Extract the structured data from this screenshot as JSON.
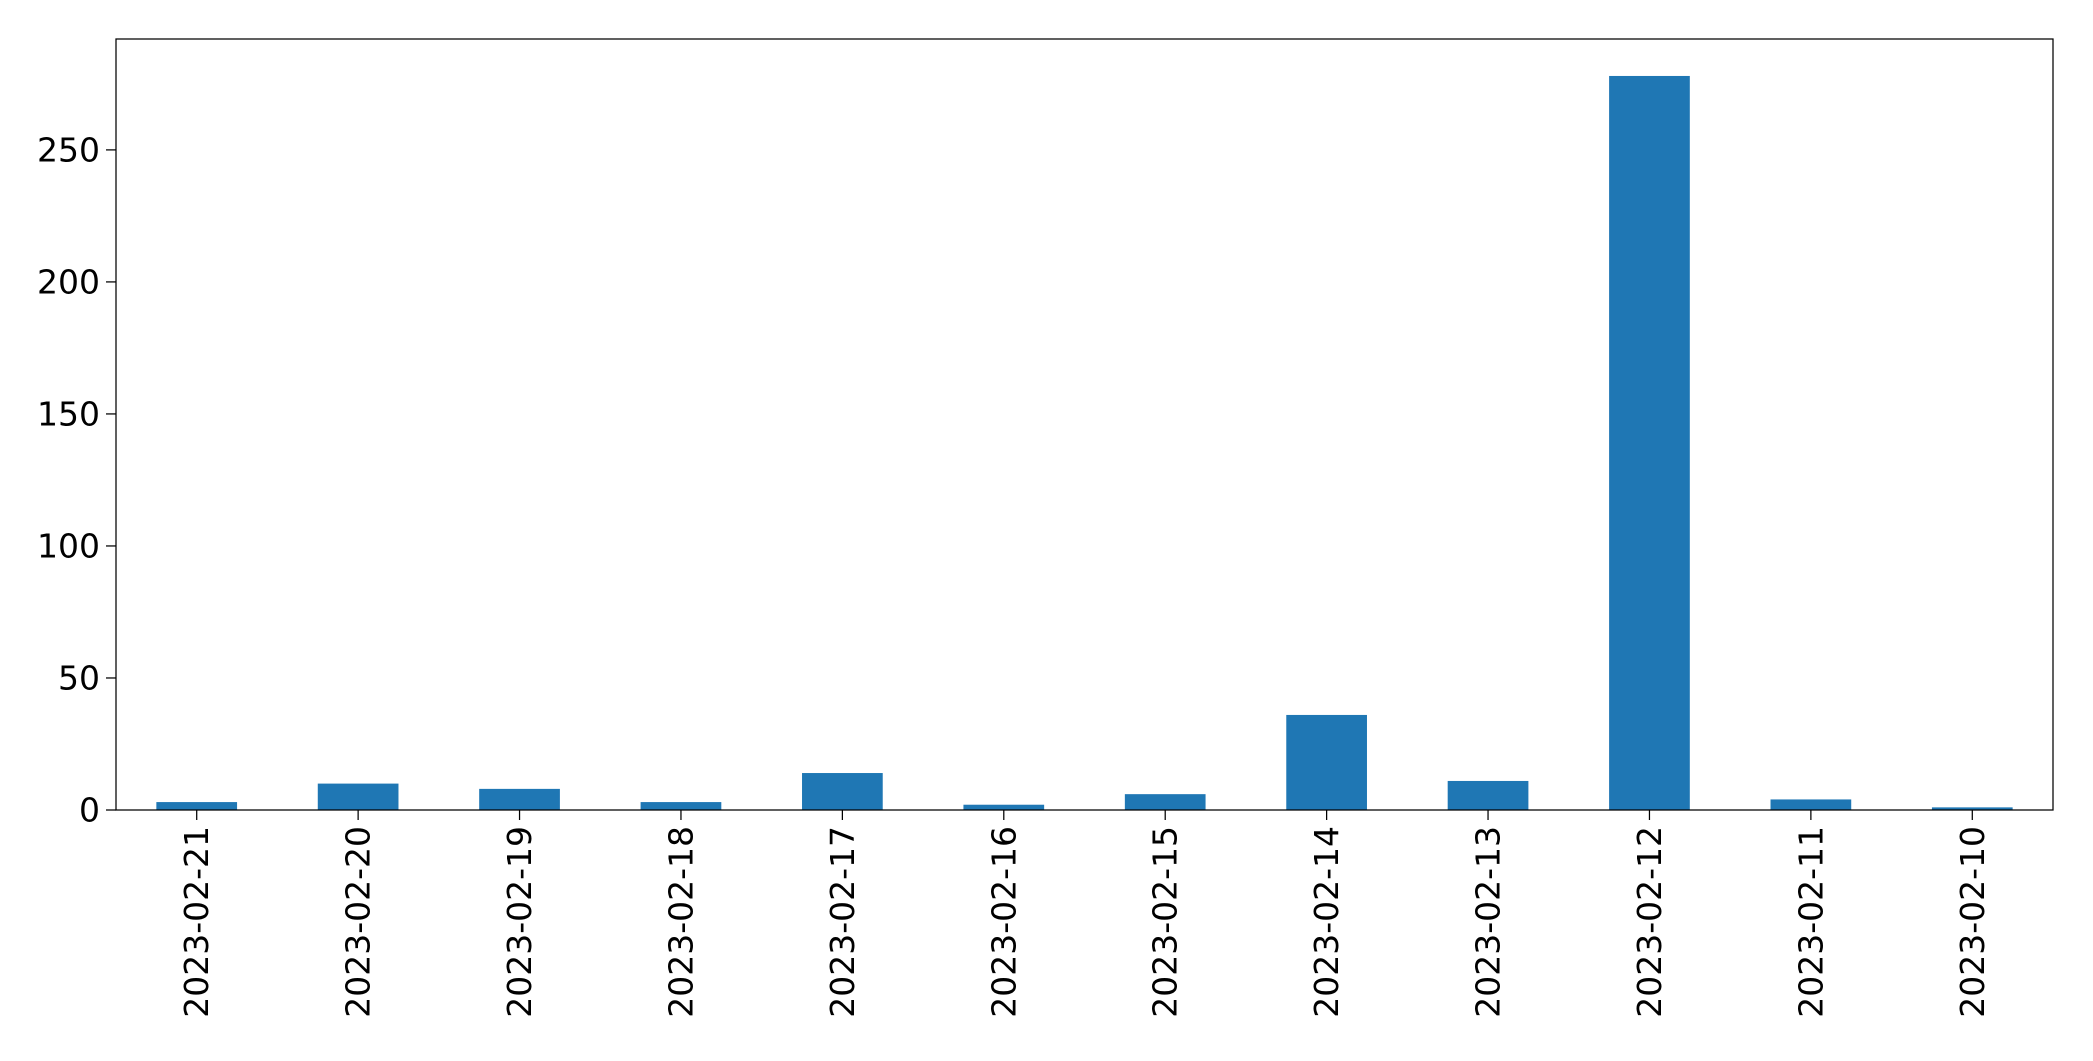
{
  "chart_data": {
    "type": "bar",
    "title": "",
    "xlabel": "",
    "ylabel": "",
    "categories": [
      "2023-02-21",
      "2023-02-20",
      "2023-02-19",
      "2023-02-18",
      "2023-02-17",
      "2023-02-16",
      "2023-02-15",
      "2023-02-14",
      "2023-02-13",
      "2023-02-12",
      "2023-02-11",
      "2023-02-10"
    ],
    "values": [
      3,
      10,
      8,
      3,
      14,
      2,
      6,
      36,
      11,
      278,
      4,
      1
    ],
    "ylim": [
      0,
      292
    ],
    "yticks": [
      0,
      50,
      100,
      150,
      200,
      250
    ],
    "grid": false,
    "legend": "none",
    "bar_color": "#1f77b4"
  }
}
